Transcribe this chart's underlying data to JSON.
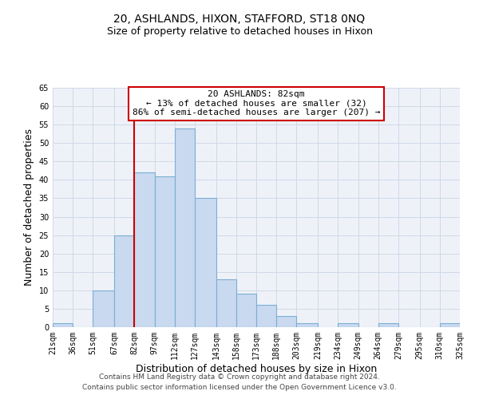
{
  "title": "20, ASHLANDS, HIXON, STAFFORD, ST18 0NQ",
  "subtitle": "Size of property relative to detached houses in Hixon",
  "xlabel": "Distribution of detached houses by size in Hixon",
  "ylabel": "Number of detached properties",
  "bin_edges": [
    21,
    36,
    51,
    67,
    82,
    97,
    112,
    127,
    143,
    158,
    173,
    188,
    203,
    219,
    234,
    249,
    264,
    279,
    295,
    310,
    325
  ],
  "counts": [
    1,
    0,
    10,
    25,
    42,
    41,
    54,
    35,
    13,
    9,
    6,
    3,
    1,
    0,
    1,
    0,
    1,
    0,
    0,
    1
  ],
  "tick_labels": [
    "21sqm",
    "36sqm",
    "51sqm",
    "67sqm",
    "82sqm",
    "97sqm",
    "112sqm",
    "127sqm",
    "143sqm",
    "158sqm",
    "173sqm",
    "188sqm",
    "203sqm",
    "219sqm",
    "234sqm",
    "249sqm",
    "264sqm",
    "279sqm",
    "295sqm",
    "310sqm",
    "325sqm"
  ],
  "bar_fill": "#c9d9f0",
  "bar_edge": "#7bafd4",
  "vline_x": 82,
  "vline_color": "#cc0000",
  "annotation_title": "20 ASHLANDS: 82sqm",
  "annotation_line1": "← 13% of detached houses are smaller (32)",
  "annotation_line2": "86% of semi-detached houses are larger (207) →",
  "box_edge_color": "#cc0000",
  "ylim": [
    0,
    65
  ],
  "yticks": [
    0,
    5,
    10,
    15,
    20,
    25,
    30,
    35,
    40,
    45,
    50,
    55,
    60,
    65
  ],
  "grid_color": "#d0d8e8",
  "background_color": "#eef2f8",
  "footer1": "Contains HM Land Registry data © Crown copyright and database right 2024.",
  "footer2": "Contains public sector information licensed under the Open Government Licence v3.0.",
  "title_fontsize": 10,
  "subtitle_fontsize": 9,
  "axis_label_fontsize": 9,
  "tick_fontsize": 7,
  "annotation_fontsize": 8,
  "footer_fontsize": 6.5
}
